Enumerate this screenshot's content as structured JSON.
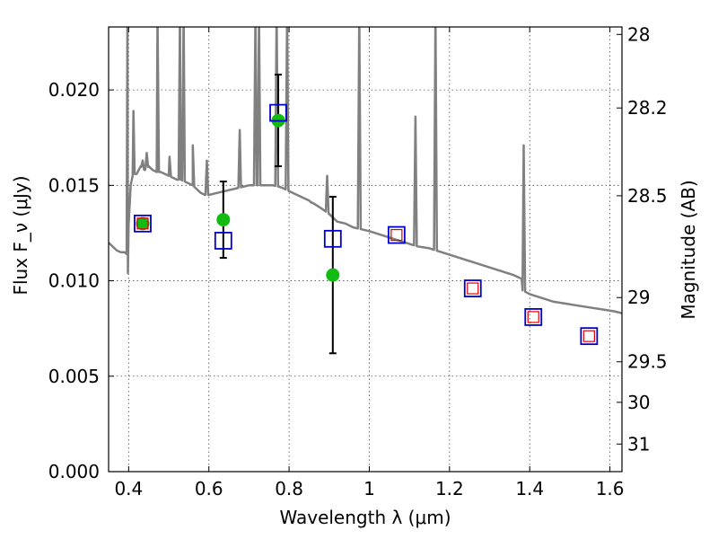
{
  "chart_data": {
    "type": "scatter",
    "title": "",
    "xlabel": "Wavelength λ (μm)",
    "ylabel": "Flux F_ν (μJy)",
    "ylabel_right": "Magnitude (AB)",
    "xlim": [
      0.35,
      1.63
    ],
    "ylim": [
      0.0,
      0.0233
    ],
    "grid": true,
    "x_ticks": [
      0.4,
      0.6,
      0.8,
      1.0,
      1.2,
      1.4,
      1.6
    ],
    "x_tick_labels": [
      "0.4",
      "0.6",
      "0.8",
      "1",
      "1.2",
      "1.4",
      "1.6"
    ],
    "y_ticks": [
      0.0,
      0.005,
      0.01,
      0.015,
      0.02
    ],
    "y_tick_labels": [
      "0.000",
      "0.005",
      "0.010",
      "0.015",
      "0.020"
    ],
    "mag_ticks": [
      28,
      28.2,
      28.5,
      29,
      29.5,
      30,
      31
    ],
    "mag_tick_labels": [
      "28",
      "28.2",
      "28.5",
      "29",
      "29.5",
      "30",
      "31"
    ],
    "colors": {
      "template": "#808080",
      "observed": "#11bb11",
      "model_box": "#0000cc",
      "inner_box": "#dd0000"
    },
    "series": [
      {
        "kind": "template_spectrum",
        "x": [
          0.35,
          0.37,
          0.38,
          0.39,
          0.395,
          0.398,
          0.4,
          0.405,
          0.41,
          0.415,
          0.42,
          0.43,
          0.44,
          0.45,
          0.46,
          0.47,
          0.48,
          0.49,
          0.5,
          0.51,
          0.52,
          0.53,
          0.54,
          0.55,
          0.56,
          0.57,
          0.58,
          0.59,
          0.6,
          0.62,
          0.64,
          0.66,
          0.68,
          0.7,
          0.72,
          0.74,
          0.76,
          0.78,
          0.8,
          0.82,
          0.85,
          0.88,
          0.9,
          0.92,
          0.94,
          0.96,
          0.98,
          1.0,
          1.03,
          1.06,
          1.09,
          1.12,
          1.15,
          1.18,
          1.21,
          1.24,
          1.27,
          1.3,
          1.33,
          1.36,
          1.38,
          1.382,
          1.4,
          1.43,
          1.46,
          1.49,
          1.52,
          1.55,
          1.58,
          1.61,
          1.63
        ],
        "y": [
          0.012,
          0.0116,
          0.0115,
          0.0115,
          0.0114,
          0.0104,
          0.013,
          0.015,
          0.0155,
          0.0156,
          0.0156,
          0.016,
          0.0158,
          0.016,
          0.0158,
          0.0157,
          0.0157,
          0.0156,
          0.0155,
          0.0154,
          0.0153,
          0.0153,
          0.0152,
          0.0151,
          0.015,
          0.0148,
          0.0146,
          0.0145,
          0.0145,
          0.0146,
          0.0147,
          0.0148,
          0.0149,
          0.015,
          0.015,
          0.015,
          0.015,
          0.0149,
          0.0147,
          0.0145,
          0.0142,
          0.0138,
          0.0135,
          0.0131,
          0.013,
          0.0128,
          0.0127,
          0.0126,
          0.0124,
          0.0122,
          0.012,
          0.0118,
          0.0117,
          0.0115,
          0.0113,
          0.0111,
          0.0109,
          0.0107,
          0.0105,
          0.0103,
          0.0101,
          0.0095,
          0.0093,
          0.0091,
          0.0089,
          0.0088,
          0.0087,
          0.0086,
          0.0085,
          0.0084,
          0.0083
        ]
      },
      {
        "kind": "template_emission_lines",
        "lines": [
          {
            "x": 0.397,
            "peak": 0.024
          },
          {
            "x": 0.412,
            "peak": 0.0189
          },
          {
            "x": 0.435,
            "peak": 0.0163
          },
          {
            "x": 0.445,
            "peak": 0.0167
          },
          {
            "x": 0.472,
            "peak": 0.024
          },
          {
            "x": 0.502,
            "peak": 0.0165
          },
          {
            "x": 0.528,
            "peak": 0.024
          },
          {
            "x": 0.537,
            "peak": 0.024
          },
          {
            "x": 0.56,
            "peak": 0.0171
          },
          {
            "x": 0.595,
            "peak": 0.0163
          },
          {
            "x": 0.677,
            "peak": 0.0179
          },
          {
            "x": 0.716,
            "peak": 0.024
          },
          {
            "x": 0.725,
            "peak": 0.024
          },
          {
            "x": 0.769,
            "peak": 0.024
          },
          {
            "x": 0.795,
            "peak": 0.024
          },
          {
            "x": 0.855,
            "peak": 0.0141
          },
          {
            "x": 0.895,
            "peak": 0.0155
          },
          {
            "x": 0.975,
            "peak": 0.024
          },
          {
            "x": 1.115,
            "peak": 0.0186
          },
          {
            "x": 1.165,
            "peak": 0.024
          },
          {
            "x": 1.385,
            "peak": 0.0171
          }
        ]
      },
      {
        "kind": "observed",
        "x": [
          0.435,
          0.636,
          0.773,
          0.909
        ],
        "y": [
          0.013,
          0.0132,
          0.0184,
          0.0103
        ],
        "yerr": [
          null,
          0.002,
          0.0024,
          0.0041
        ]
      },
      {
        "kind": "model",
        "x": [
          0.435,
          0.636,
          0.773,
          0.909,
          1.068,
          1.258,
          1.409,
          1.548
        ],
        "y": [
          0.013,
          0.0121,
          0.0188,
          0.0122,
          0.0124,
          0.0096,
          0.0081,
          0.0071
        ],
        "inner_x": [
          0.435,
          1.068,
          1.258,
          1.409,
          1.548
        ],
        "inner_y": [
          0.013,
          0.0124,
          0.0096,
          0.0081,
          0.0071
        ]
      }
    ]
  }
}
